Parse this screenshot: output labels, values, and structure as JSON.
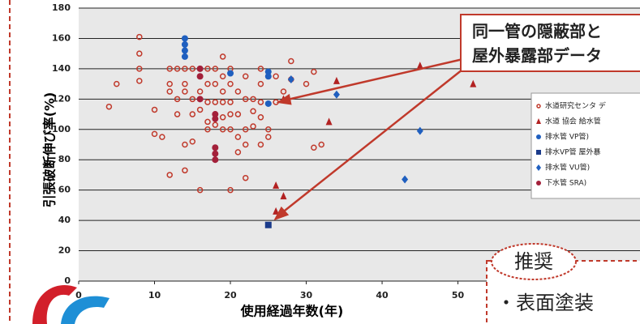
{
  "chart_data": {
    "type": "scatter",
    "xlabel": "使用経過年数(年)",
    "ylabel": "引張破断伸び率(%)",
    "xlim": [
      0,
      74
    ],
    "ylim": [
      0,
      180
    ],
    "xticks": [
      0,
      10,
      20,
      30,
      40,
      50
    ],
    "yticks": [
      0,
      20,
      40,
      60,
      80,
      100,
      120,
      140,
      160,
      180
    ],
    "grid": true,
    "series": [
      {
        "name": "水道研究センタ デ",
        "color": "#c0392b",
        "marker": "open-circle",
        "x": [
          4,
          5,
          8,
          8,
          8,
          8,
          10,
          10,
          11,
          12,
          12,
          12,
          12,
          13,
          13,
          13,
          14,
          14,
          14,
          14,
          14,
          15,
          15,
          15,
          15,
          16,
          16,
          16,
          16,
          17,
          17,
          17,
          17,
          17,
          18,
          18,
          18,
          18,
          18,
          19,
          19,
          19,
          19,
          19,
          19,
          20,
          20,
          20,
          20,
          20,
          20,
          21,
          21,
          21,
          21,
          22,
          22,
          22,
          22,
          22,
          23,
          23,
          23,
          24,
          24,
          24,
          24,
          24,
          25,
          25,
          25,
          26,
          26,
          27,
          28,
          28,
          30,
          31,
          31,
          32
        ],
        "values": [
          115,
          130,
          161,
          150,
          140,
          132,
          113,
          97,
          95,
          140,
          130,
          125,
          70,
          140,
          120,
          110,
          140,
          130,
          125,
          90,
          73,
          140,
          120,
          110,
          92,
          135,
          125,
          113,
          60,
          140,
          130,
          118,
          105,
          100,
          140,
          130,
          118,
          110,
          103,
          148,
          135,
          125,
          118,
          108,
          100,
          140,
          130,
          118,
          110,
          100,
          60,
          125,
          110,
          95,
          85,
          135,
          120,
          100,
          90,
          68,
          120,
          112,
          102,
          140,
          130,
          118,
          108,
          90,
          135,
          100,
          95,
          135,
          118,
          125,
          145,
          133,
          130,
          88,
          138,
          90
        ]
      },
      {
        "name": "水道 協会 給水管",
        "color": "#b22222",
        "marker": "triangle",
        "x": [
          26,
          27,
          27,
          26,
          33,
          34,
          45,
          52
        ],
        "values": [
          63,
          120,
          56,
          46,
          105,
          132,
          142,
          130
        ]
      },
      {
        "name": "排水管 VP管)",
        "color": "#1f5fbf",
        "marker": "circle",
        "x": [
          14,
          14,
          14,
          14,
          20,
          25,
          25,
          25
        ],
        "values": [
          160,
          156,
          152,
          148,
          137,
          138,
          135,
          117
        ]
      },
      {
        "name": "排水VP管 屋外暴",
        "color": "#1a3a8a",
        "marker": "square",
        "x": [
          25
        ],
        "values": [
          37
        ]
      },
      {
        "name": "排水管 VU管)",
        "color": "#1f5fbf",
        "marker": "diamond",
        "x": [
          28,
          34,
          43,
          45
        ],
        "values": [
          133,
          123,
          67,
          99
        ]
      },
      {
        "name": "下水管 SRA)",
        "color": "#a3203a",
        "marker": "circle",
        "x": [
          16,
          16,
          16,
          18,
          18,
          18,
          18,
          18
        ],
        "values": [
          140,
          135,
          120,
          88,
          84,
          80,
          110,
          107
        ]
      }
    ]
  },
  "callout": [
    "同一管の隠蔽部と",
    "屋外暴露部データ"
  ],
  "recommend": {
    "title": "推奨",
    "items": [
      "・表面塗装"
    ]
  }
}
